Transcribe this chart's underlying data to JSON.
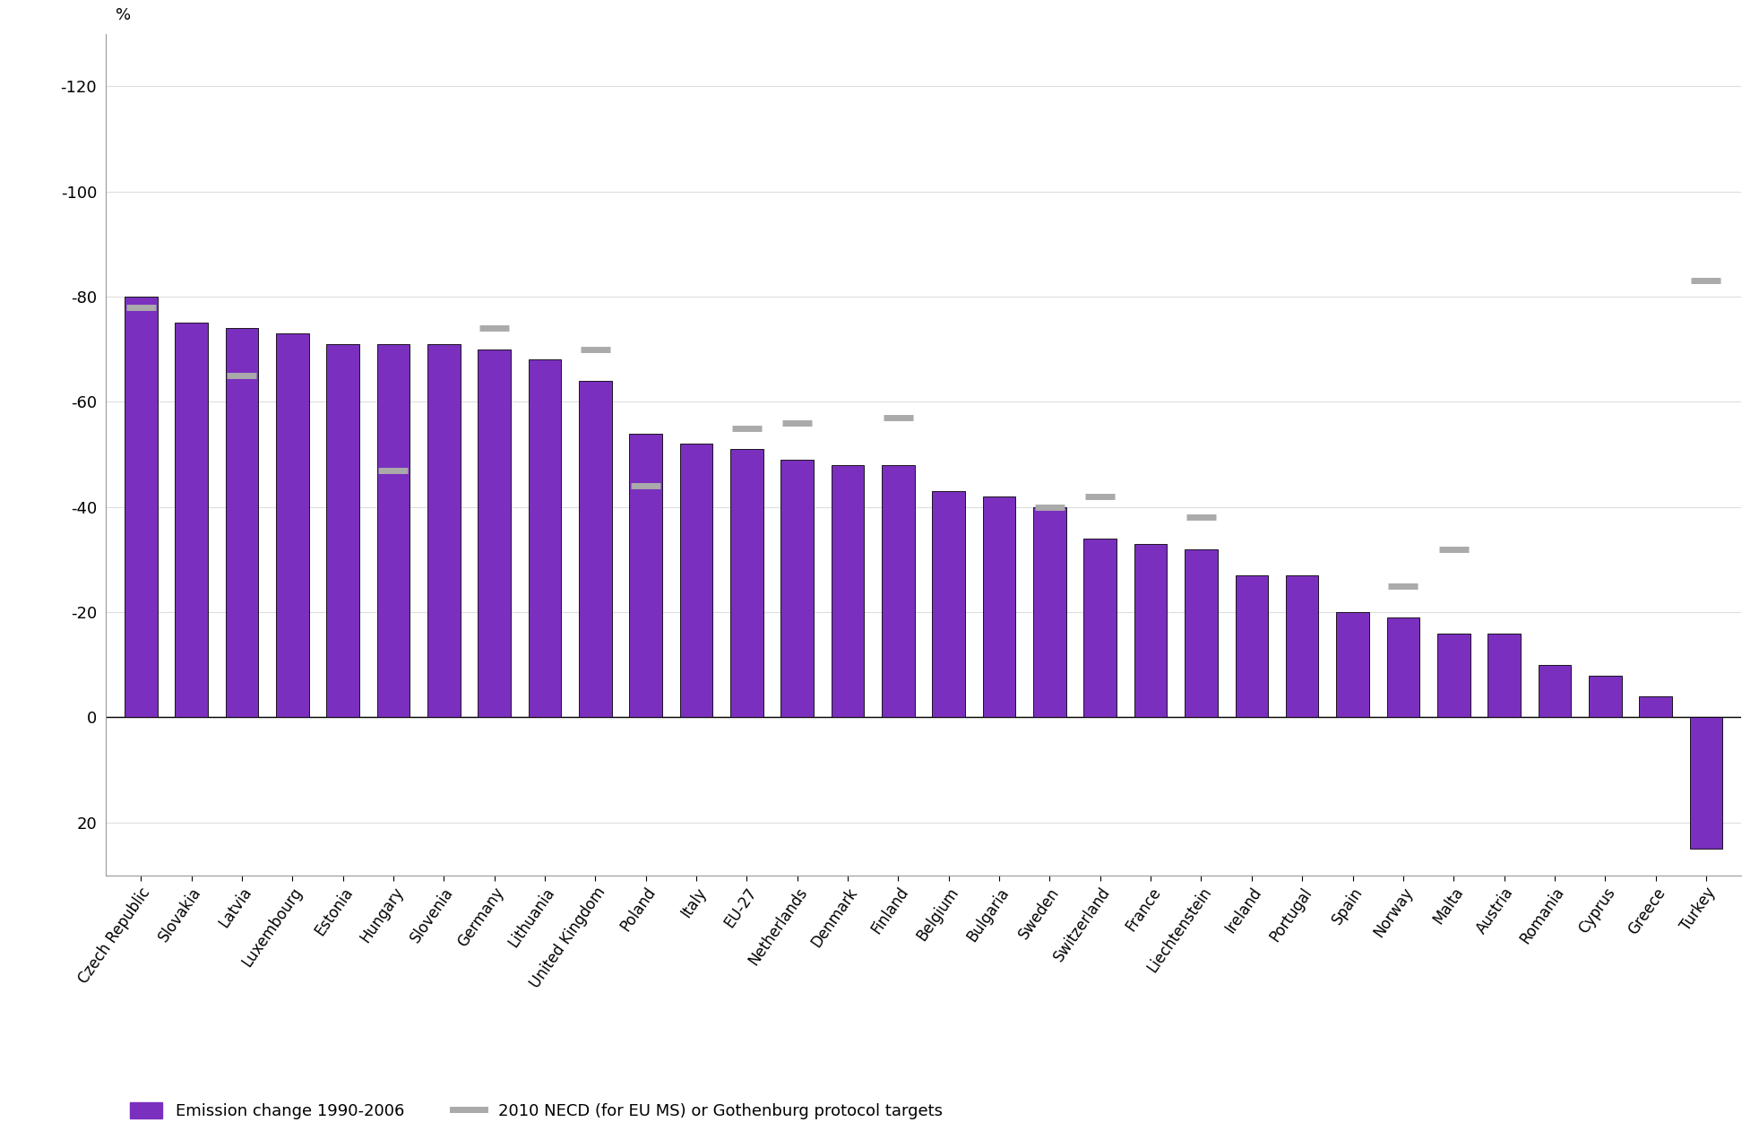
{
  "categories": [
    "Czech Republic",
    "Slovakia",
    "Latvia",
    "Luxembourg",
    "Estonia",
    "Hungary",
    "Slovenia",
    "Germany",
    "Lithuania",
    "United Kingdom",
    "Poland",
    "Italy",
    "EU-27",
    "Netherlands",
    "Denmark",
    "Finland",
    "Belgium",
    "Bulgaria",
    "Sweden",
    "Switzerland",
    "France",
    "Liechtenstein",
    "Ireland",
    "Portugal",
    "Spain",
    "Norway",
    "Malta",
    "Austria",
    "Romania",
    "Cyprus",
    "Greece",
    "Turkey"
  ],
  "bar_values": [
    -80,
    -75,
    -74,
    -73,
    -71,
    -71,
    -71,
    -70,
    -68,
    -64,
    -54,
    -52,
    -51,
    -49,
    -48,
    -48,
    -43,
    -42,
    -40,
    -34,
    -33,
    -32,
    -27,
    -27,
    -20,
    -19,
    -16,
    -16,
    -10,
    -8,
    -4,
    25
  ],
  "target_values": [
    -78,
    null,
    -65,
    null,
    null,
    -47,
    null,
    -74,
    null,
    -70,
    -44,
    null,
    -55,
    -56,
    null,
    -57,
    null,
    null,
    -40,
    -42,
    null,
    -38,
    null,
    null,
    null,
    -25,
    -32,
    null,
    null,
    null,
    null,
    -83
  ],
  "bar_color": "#7B2FBE",
  "target_color": "#AAAAAA",
  "ylabel": "%",
  "ylim": [
    -130,
    30
  ],
  "yticks": [
    -120,
    -100,
    -80,
    -60,
    -40,
    -20,
    0,
    20
  ],
  "legend_bar_label": "Emission change 1990-2006",
  "legend_target_label": "2010 NECD (for EU MS) or Gothenburg protocol targets",
  "background_color": "#FFFFFF"
}
